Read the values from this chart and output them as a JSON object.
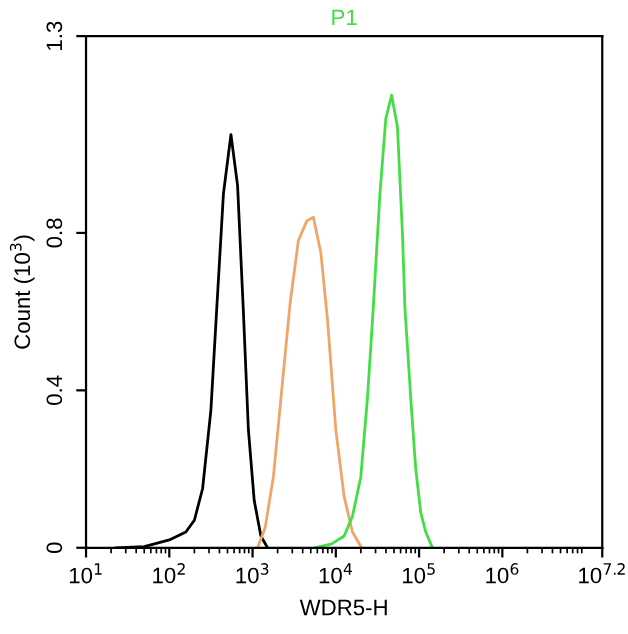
{
  "chart_data": {
    "type": "line",
    "title": "P1",
    "xlabel": "WDR5-H",
    "ylabel": "Count (10$^{3}$)",
    "log": "x",
    "grid": false,
    "marker": "none",
    "line_style": "solid",
    "xlim": [
      10,
      15848932
    ],
    "xticks": [
      {
        "value": 10,
        "label": "10$^{1}$"
      },
      {
        "value": 100,
        "label": "10$^{2}$"
      },
      {
        "value": 1000,
        "label": "10$^{3}$"
      },
      {
        "value": 10000,
        "label": "10$^{4}$"
      },
      {
        "value": 100000,
        "label": "10$^{5}$"
      },
      {
        "value": 1000000,
        "label": "10$^{6}$"
      },
      {
        "value": 15848932,
        "label": "10$^{7.2}$"
      }
    ],
    "ylim": [
      0,
      1.3
    ],
    "yticks": [
      0,
      0.4,
      0.8,
      1.3
    ],
    "series": [
      {
        "color": "#000000",
        "x": [
          22.9,
          50.1,
          100,
          158,
          200,
          251,
          316,
          372,
          447,
          550,
          661,
          776,
          891,
          1047,
          1259,
          1514
        ],
        "values": [
          0,
          0.003,
          0.02,
          0.04,
          0.07,
          0.15,
          0.35,
          0.61,
          0.9,
          1.05,
          0.92,
          0.6,
          0.3,
          0.12,
          0.03,
          0
        ]
      },
      {
        "color": "#f0a468",
        "x": [
          1148,
          1413,
          1778,
          2239,
          2818,
          3548,
          4467,
          5370,
          6607,
          7943,
          10000,
          12589,
          15849,
          20417
        ],
        "values": [
          0,
          0.05,
          0.18,
          0.4,
          0.62,
          0.78,
          0.83,
          0.84,
          0.75,
          0.58,
          0.3,
          0.13,
          0.04,
          0
        ]
      },
      {
        "color": "#44dd44",
        "x": [
          5623,
          8913,
          12589,
          15849,
          19953,
          23988,
          28184,
          33884,
          39811,
          46774,
          54954,
          63096,
          67608,
          79433,
          91201,
          104713,
          120226,
          144544
        ],
        "values": [
          0,
          0.01,
          0.03,
          0.08,
          0.18,
          0.38,
          0.61,
          0.9,
          1.09,
          1.15,
          1.07,
          0.8,
          0.61,
          0.38,
          0.2,
          0.09,
          0.04,
          0
        ]
      }
    ]
  }
}
